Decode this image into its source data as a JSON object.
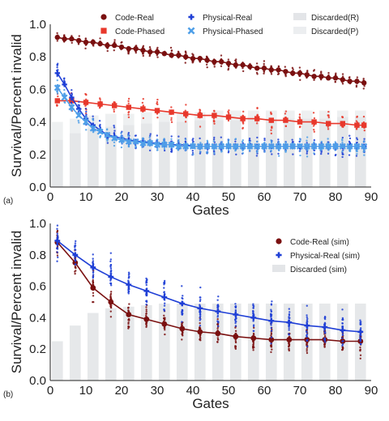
{
  "chart_data": [
    {
      "panel_label": "(a)",
      "type": "scatter",
      "xlabel": "Gates",
      "ylabel": "Survival/Percent invalid",
      "xlim": [
        0,
        90
      ],
      "ylim": [
        0.0,
        1.0
      ],
      "xticks": [
        "0",
        "10",
        "20",
        "30",
        "40",
        "50",
        "60",
        "70",
        "80",
        "90"
      ],
      "yticks": [
        "0.0",
        "0.2",
        "0.4",
        "0.6",
        "0.8",
        "1.0"
      ],
      "grid": false,
      "legend_position": "top (3 columns)",
      "legend": [
        "Code-Real",
        "Code-Phased",
        "Physical-Real",
        "Physical-Phased",
        "Discarded(R)",
        "Discarded(P)"
      ],
      "bars": {
        "x": [
          2,
          7,
          12,
          17,
          22,
          27,
          32,
          37,
          42,
          47,
          52,
          57,
          62,
          67,
          72,
          77,
          82,
          87
        ],
        "discarded_R": [
          0.29,
          0.33,
          0.36,
          0.37,
          0.38,
          0.39,
          0.4,
          0.4,
          0.41,
          0.41,
          0.41,
          0.42,
          0.42,
          0.42,
          0.42,
          0.42,
          0.43,
          0.43
        ],
        "discarded_P": [
          0.4,
          0.42,
          0.44,
          0.45,
          0.45,
          0.46,
          0.46,
          0.46,
          0.46,
          0.47,
          0.47,
          0.47,
          0.47,
          0.47,
          0.47,
          0.47,
          0.47,
          0.47
        ]
      },
      "series": [
        {
          "name": "Code-Real",
          "marker": "circle",
          "color": "#7a1010",
          "spread": 0.05,
          "x": [
            2,
            4,
            6,
            8,
            10,
            12,
            14,
            16,
            18,
            20,
            22,
            24,
            26,
            28,
            30,
            32,
            34,
            36,
            38,
            40,
            42,
            44,
            46,
            48,
            50,
            52,
            54,
            56,
            58,
            60,
            62,
            64,
            66,
            68,
            70,
            72,
            74,
            76,
            78,
            80,
            82,
            84,
            86,
            88
          ],
          "values": [
            0.92,
            0.91,
            0.91,
            0.9,
            0.89,
            0.89,
            0.88,
            0.87,
            0.87,
            0.86,
            0.85,
            0.85,
            0.84,
            0.83,
            0.83,
            0.82,
            0.81,
            0.81,
            0.8,
            0.79,
            0.79,
            0.78,
            0.77,
            0.77,
            0.76,
            0.75,
            0.75,
            0.74,
            0.73,
            0.73,
            0.72,
            0.72,
            0.71,
            0.7,
            0.7,
            0.69,
            0.68,
            0.68,
            0.67,
            0.67,
            0.66,
            0.65,
            0.65,
            0.64
          ]
        },
        {
          "name": "Code-Phased",
          "marker": "square",
          "color": "#e8382c",
          "spread": 0.1,
          "x": [
            2,
            6,
            10,
            14,
            18,
            22,
            26,
            30,
            34,
            38,
            42,
            46,
            50,
            54,
            58,
            62,
            66,
            70,
            74,
            78,
            82,
            86,
            88
          ],
          "values": [
            0.53,
            0.53,
            0.52,
            0.51,
            0.5,
            0.49,
            0.48,
            0.47,
            0.46,
            0.45,
            0.44,
            0.44,
            0.43,
            0.42,
            0.42,
            0.41,
            0.41,
            0.4,
            0.4,
            0.39,
            0.39,
            0.38,
            0.38
          ]
        },
        {
          "name": "Physical-Real",
          "marker": "plus",
          "color": "#1f3fd6",
          "spread": 0.08,
          "x": [
            2,
            4,
            6,
            8,
            10,
            12,
            14,
            16,
            18,
            20,
            22,
            24,
            26,
            28,
            30,
            32,
            34,
            36,
            38,
            40,
            42,
            44,
            46,
            48,
            50,
            52,
            54,
            56,
            58,
            60,
            62,
            64,
            66,
            68,
            70,
            72,
            74,
            76,
            78,
            80,
            82,
            84,
            86,
            88
          ],
          "values": [
            0.7,
            0.63,
            0.55,
            0.48,
            0.42,
            0.38,
            0.35,
            0.32,
            0.31,
            0.3,
            0.29,
            0.28,
            0.28,
            0.27,
            0.27,
            0.26,
            0.26,
            0.26,
            0.26,
            0.25,
            0.25,
            0.25,
            0.25,
            0.25,
            0.25,
            0.25,
            0.25,
            0.25,
            0.25,
            0.25,
            0.25,
            0.25,
            0.25,
            0.25,
            0.25,
            0.25,
            0.25,
            0.25,
            0.25,
            0.25,
            0.25,
            0.25,
            0.25,
            0.25
          ]
        },
        {
          "name": "Physical-Phased",
          "marker": "x",
          "color": "#4f9fe8",
          "spread": 0.07,
          "x": [
            2,
            4,
            6,
            8,
            10,
            12,
            14,
            16,
            18,
            20,
            22,
            24,
            26,
            28,
            30,
            32,
            34,
            36,
            38,
            40,
            42,
            44,
            46,
            48,
            50,
            52,
            54,
            56,
            58,
            60,
            62,
            64,
            66,
            68,
            70,
            72,
            74,
            76,
            78,
            80,
            82,
            84,
            86,
            88
          ],
          "values": [
            0.61,
            0.55,
            0.49,
            0.44,
            0.4,
            0.36,
            0.34,
            0.32,
            0.3,
            0.29,
            0.28,
            0.28,
            0.27,
            0.27,
            0.26,
            0.26,
            0.26,
            0.25,
            0.25,
            0.25,
            0.25,
            0.25,
            0.25,
            0.25,
            0.25,
            0.25,
            0.25,
            0.25,
            0.25,
            0.25,
            0.25,
            0.25,
            0.25,
            0.25,
            0.25,
            0.25,
            0.25,
            0.25,
            0.25,
            0.25,
            0.25,
            0.25,
            0.25,
            0.25
          ]
        }
      ]
    },
    {
      "panel_label": "(b)",
      "type": "scatter",
      "xlabel": "Gates",
      "ylabel": "Survival/Percent invalid",
      "xlim": [
        0,
        90
      ],
      "ylim": [
        0.0,
        1.0
      ],
      "xticks": [
        "0",
        "10",
        "20",
        "30",
        "40",
        "50",
        "60",
        "70",
        "80",
        "90"
      ],
      "yticks": [
        "0.0",
        "0.2",
        "0.4",
        "0.6",
        "0.8",
        "1.0"
      ],
      "grid": false,
      "legend_position": "right",
      "legend": [
        "Code-Real (sim)",
        "Physical-Real (sim)",
        "Discarded (sim)"
      ],
      "bars": {
        "x": [
          2,
          7,
          12,
          17,
          22,
          27,
          32,
          37,
          42,
          47,
          52,
          57,
          62,
          67,
          72,
          77,
          82,
          87
        ],
        "discarded": [
          0.25,
          0.35,
          0.43,
          0.46,
          0.47,
          0.48,
          0.49,
          0.49,
          0.49,
          0.49,
          0.49,
          0.49,
          0.49,
          0.49,
          0.49,
          0.49,
          0.49,
          0.49
        ]
      },
      "series": [
        {
          "name": "Code-Real (sim)",
          "marker": "circle",
          "color": "#7a1010",
          "spread": 0.12,
          "x": [
            2,
            7,
            12,
            17,
            22,
            27,
            32,
            37,
            42,
            47,
            52,
            57,
            62,
            67,
            72,
            77,
            82,
            87
          ],
          "values": [
            0.88,
            0.75,
            0.59,
            0.5,
            0.42,
            0.39,
            0.36,
            0.33,
            0.31,
            0.3,
            0.28,
            0.27,
            0.26,
            0.26,
            0.26,
            0.26,
            0.25,
            0.25
          ]
        },
        {
          "name": "Physical-Real (sim)",
          "marker": "plus",
          "color": "#1f3fd6",
          "spread": 0.16,
          "x": [
            2,
            7,
            12,
            17,
            22,
            27,
            32,
            37,
            42,
            47,
            52,
            57,
            62,
            67,
            72,
            77,
            82,
            87
          ],
          "values": [
            0.89,
            0.8,
            0.72,
            0.66,
            0.61,
            0.57,
            0.53,
            0.49,
            0.46,
            0.44,
            0.42,
            0.4,
            0.38,
            0.37,
            0.35,
            0.34,
            0.32,
            0.31
          ]
        }
      ]
    }
  ]
}
